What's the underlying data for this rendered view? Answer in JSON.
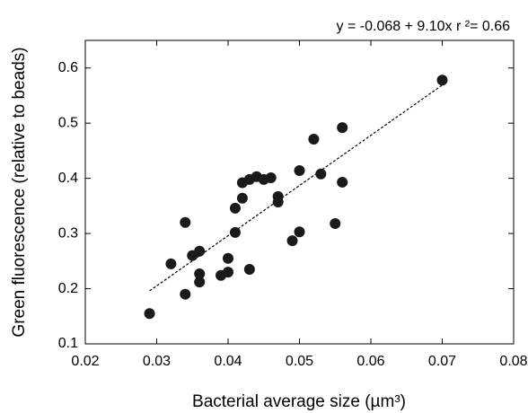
{
  "chart_data": {
    "type": "scatter",
    "annotation": "y = -0.068 + 9.10x r ²= 0.66",
    "xlabel": "Bacterial average size (µm³)",
    "ylabel": "Green fluorescence (relative to beads)",
    "xlim": [
      0.02,
      0.08
    ],
    "ylim": [
      0.1,
      0.65
    ],
    "xticks": [
      0.02,
      0.03,
      0.04,
      0.05,
      0.06,
      0.07,
      0.08
    ],
    "yticks": [
      0.1,
      0.2,
      0.3,
      0.4,
      0.5,
      0.6
    ],
    "color": "#1a1a1a",
    "x": [
      0.029,
      0.032,
      0.034,
      0.034,
      0.035,
      0.036,
      0.036,
      0.036,
      0.039,
      0.04,
      0.04,
      0.041,
      0.041,
      0.042,
      0.042,
      0.043,
      0.043,
      0.044,
      0.045,
      0.046,
      0.047,
      0.047,
      0.049,
      0.05,
      0.05,
      0.052,
      0.053,
      0.055,
      0.056,
      0.056,
      0.07
    ],
    "y": [
      0.155,
      0.245,
      0.32,
      0.19,
      0.26,
      0.268,
      0.227,
      0.212,
      0.224,
      0.255,
      0.23,
      0.346,
      0.302,
      0.364,
      0.392,
      0.398,
      0.235,
      0.403,
      0.398,
      0.401,
      0.367,
      0.357,
      0.287,
      0.303,
      0.414,
      0.471,
      0.408,
      0.318,
      0.492,
      0.393,
      0.578
    ],
    "fit_line": {
      "x": [
        0.029,
        0.07
      ],
      "y": [
        0.196,
        0.569
      ]
    }
  }
}
